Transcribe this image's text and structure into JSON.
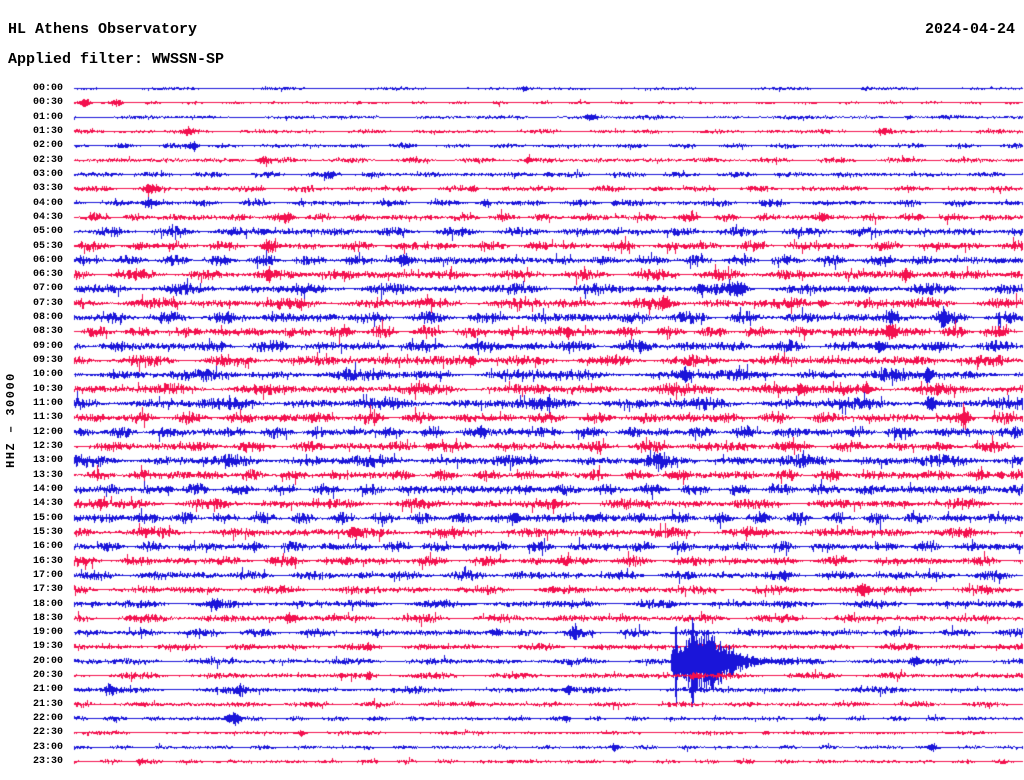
{
  "header": {
    "station_title": "HL Athens Observatory",
    "filter_label": "Applied filter: WWSSN-SP",
    "date": "2024-04-24"
  },
  "y_axis": {
    "label": "HHZ – 30000",
    "channel": "HHZ",
    "scale": "30000"
  },
  "chart_data": {
    "type": "line",
    "subtype": "helicorder-day-plot",
    "title": "HL Athens Observatory",
    "filter": "WWSSN-SP",
    "date": "2024-04-24",
    "channel": "HHZ",
    "amplitude_scale": 30000,
    "minutes_per_row": 30,
    "row_count": 48,
    "time_start": "00:00",
    "time_end": "23:30",
    "legend_position": "none",
    "grid": false,
    "colors": {
      "blue": "#1a15d9",
      "red": "#f3104e",
      "label": "#000000",
      "background": "#ffffff"
    },
    "note": "rows: t=start time, color=trace color, amp=background noise half-amplitude px, events: x=fraction along row, a=peak amplitude px, w=width fraction, shape quake = large earthquake with coda",
    "rows": [
      {
        "t": "00:00",
        "color": "blue",
        "amp": 1.4,
        "events": [
          {
            "x": 0.475,
            "a": 3,
            "w": 0.004
          },
          {
            "x": 0.835,
            "a": 2.4,
            "w": 0.004
          }
        ]
      },
      {
        "t": "00:30",
        "color": "red",
        "amp": 1.4,
        "events": [
          {
            "x": 0.012,
            "a": 4.5,
            "w": 0.006
          },
          {
            "x": 0.045,
            "a": 3.6,
            "w": 0.005
          },
          {
            "x": 0.3,
            "a": 2,
            "w": 0.003
          }
        ]
      },
      {
        "t": "01:00",
        "color": "blue",
        "amp": 1.7,
        "events": [
          {
            "x": 0.545,
            "a": 4.2,
            "w": 0.006
          },
          {
            "x": 0.88,
            "a": 2.6,
            "w": 0.004
          }
        ]
      },
      {
        "t": "01:30",
        "color": "red",
        "amp": 2.0,
        "events": [
          {
            "x": 0.12,
            "a": 3,
            "w": 0.005
          },
          {
            "x": 0.855,
            "a": 3.2,
            "w": 0.005
          }
        ]
      },
      {
        "t": "02:00",
        "color": "blue",
        "amp": 2.2,
        "events": [
          {
            "x": 0.125,
            "a": 4.5,
            "w": 0.006
          }
        ]
      },
      {
        "t": "02:30",
        "color": "red",
        "amp": 2.4,
        "events": [
          {
            "x": 0.2,
            "a": 4.5,
            "w": 0.006
          },
          {
            "x": 0.48,
            "a": 3,
            "w": 0.004
          }
        ]
      },
      {
        "t": "03:00",
        "color": "blue",
        "amp": 2.6,
        "events": [
          {
            "x": 0.27,
            "a": 3.4,
            "w": 0.005
          },
          {
            "x": 0.5,
            "a": 3,
            "w": 0.004
          }
        ]
      },
      {
        "t": "03:30",
        "color": "red",
        "amp": 2.8,
        "events": [
          {
            "x": 0.08,
            "a": 4.2,
            "w": 0.006
          },
          {
            "x": 0.42,
            "a": 2.6,
            "w": 0.004
          }
        ]
      },
      {
        "t": "04:00",
        "color": "blue",
        "amp": 3.0,
        "events": [
          {
            "x": 0.08,
            "a": 5,
            "w": 0.007
          },
          {
            "x": 0.435,
            "a": 3.4,
            "w": 0.004
          },
          {
            "x": 0.57,
            "a": 3.2,
            "w": 0.004
          }
        ]
      },
      {
        "t": "04:30",
        "color": "red",
        "amp": 3.6,
        "events": [
          {
            "x": 0.225,
            "a": 4.4,
            "w": 0.006
          },
          {
            "x": 0.79,
            "a": 3.8,
            "w": 0.005
          }
        ]
      },
      {
        "t": "05:00",
        "color": "blue",
        "amp": 4.2,
        "events": [
          {
            "x": 0.2,
            "a": 3,
            "w": 0.004
          }
        ]
      },
      {
        "t": "05:30",
        "color": "red",
        "amp": 4.4,
        "events": [
          {
            "x": 0.205,
            "a": 4.4,
            "w": 0.005
          }
        ]
      },
      {
        "t": "06:00",
        "color": "blue",
        "amp": 4.6,
        "events": [
          {
            "x": 0.348,
            "a": 4.4,
            "w": 0.005
          }
        ]
      },
      {
        "t": "06:30",
        "color": "red",
        "amp": 4.8,
        "events": [
          {
            "x": 0.205,
            "a": 5.5,
            "w": 0.004
          },
          {
            "x": 0.877,
            "a": 6.5,
            "w": 0.004
          }
        ]
      },
      {
        "t": "07:00",
        "color": "blue",
        "amp": 5.0,
        "events": [
          {
            "x": 0.7,
            "a": 7.5,
            "w": 0.007
          },
          {
            "x": 0.66,
            "a": 5,
            "w": 0.004
          }
        ]
      },
      {
        "t": "07:30",
        "color": "red",
        "amp": 5.0,
        "events": [
          {
            "x": 0.623,
            "a": 4.5,
            "w": 0.005
          },
          {
            "x": 0.79,
            "a": 4.5,
            "w": 0.005
          }
        ]
      },
      {
        "t": "08:00",
        "color": "blue",
        "amp": 5.2,
        "events": [
          {
            "x": 0.917,
            "a": 8,
            "w": 0.005
          },
          {
            "x": 0.862,
            "a": 5,
            "w": 0.004
          }
        ]
      },
      {
        "t": "08:30",
        "color": "red",
        "amp": 5.2,
        "events": [
          {
            "x": 0.861,
            "a": 9.5,
            "w": 0.006
          },
          {
            "x": 0.52,
            "a": 4.5,
            "w": 0.004
          }
        ]
      },
      {
        "t": "09:00",
        "color": "blue",
        "amp": 5.2,
        "events": [
          {
            "x": 0.85,
            "a": 5.5,
            "w": 0.005
          }
        ]
      },
      {
        "t": "09:30",
        "color": "red",
        "amp": 5.2,
        "events": [
          {
            "x": 0.42,
            "a": 3.5,
            "w": 0.004
          }
        ]
      },
      {
        "t": "10:00",
        "color": "blue",
        "amp": 5.4,
        "events": [
          {
            "x": 0.644,
            "a": 7,
            "w": 0.005
          },
          {
            "x": 0.901,
            "a": 8,
            "w": 0.005
          }
        ]
      },
      {
        "t": "10:30",
        "color": "red",
        "amp": 5.2,
        "events": [
          {
            "x": 0.766,
            "a": 5.5,
            "w": 0.005
          },
          {
            "x": 0.836,
            "a": 6,
            "w": 0.005
          }
        ]
      },
      {
        "t": "11:00",
        "color": "blue",
        "amp": 5.6,
        "events": [
          {
            "x": 0.903,
            "a": 6.5,
            "w": 0.005
          }
        ]
      },
      {
        "t": "11:30",
        "color": "red",
        "amp": 5.2,
        "events": [
          {
            "x": 0.94,
            "a": 8,
            "w": 0.005
          }
        ]
      },
      {
        "t": "12:00",
        "color": "blue",
        "amp": 5.2,
        "events": [
          {
            "x": 0.43,
            "a": 4,
            "w": 0.004
          }
        ]
      },
      {
        "t": "12:30",
        "color": "red",
        "amp": 5.0,
        "events": [
          {
            "x": 0.375,
            "a": 4.2,
            "w": 0.005
          }
        ]
      },
      {
        "t": "13:00",
        "color": "blue",
        "amp": 5.6,
        "events": [
          {
            "x": 0.617,
            "a": 6,
            "w": 0.005
          }
        ]
      },
      {
        "t": "13:30",
        "color": "red",
        "amp": 5.0,
        "events": [
          {
            "x": 0.977,
            "a": 5,
            "w": 0.004
          }
        ]
      },
      {
        "t": "14:00",
        "color": "blue",
        "amp": 5.2,
        "events": [
          {
            "x": 0.1,
            "a": 4,
            "w": 0.004
          }
        ]
      },
      {
        "t": "14:30",
        "color": "red",
        "amp": 4.8,
        "events": [
          {
            "x": 0.027,
            "a": 4.2,
            "w": 0.005
          }
        ]
      },
      {
        "t": "15:00",
        "color": "blue",
        "amp": 5.2,
        "events": [
          {
            "x": 0.465,
            "a": 5,
            "w": 0.005
          }
        ]
      },
      {
        "t": "15:30",
        "color": "red",
        "amp": 4.8,
        "events": [
          {
            "x": 0.296,
            "a": 5,
            "w": 0.005
          }
        ]
      },
      {
        "t": "16:00",
        "color": "blue",
        "amp": 4.8,
        "events": []
      },
      {
        "t": "16:30",
        "color": "red",
        "amp": 4.4,
        "events": [
          {
            "x": 0.52,
            "a": 3.5,
            "w": 0.004
          }
        ]
      },
      {
        "t": "17:00",
        "color": "blue",
        "amp": 4.2,
        "events": [
          {
            "x": 0.75,
            "a": 3.5,
            "w": 0.004
          }
        ]
      },
      {
        "t": "17:30",
        "color": "red",
        "amp": 3.8,
        "events": [
          {
            "x": 0.83,
            "a": 6,
            "w": 0.007
          }
        ]
      },
      {
        "t": "18:00",
        "color": "blue",
        "amp": 3.8,
        "events": [
          {
            "x": 0.148,
            "a": 4.2,
            "w": 0.005
          }
        ]
      },
      {
        "t": "18:30",
        "color": "red",
        "amp": 3.8,
        "events": [
          {
            "x": 0.228,
            "a": 4.6,
            "w": 0.006
          }
        ]
      },
      {
        "t": "19:00",
        "color": "blue",
        "amp": 3.6,
        "events": [
          {
            "x": 0.444,
            "a": 4.2,
            "w": 0.005
          },
          {
            "x": 0.528,
            "a": 4.2,
            "w": 0.005
          }
        ]
      },
      {
        "t": "19:30",
        "color": "red",
        "amp": 3.2,
        "events": [
          {
            "x": 0.31,
            "a": 3.2,
            "w": 0.004
          },
          {
            "x": 0.66,
            "a": 3,
            "w": 0.005
          }
        ]
      },
      {
        "t": "20:00",
        "color": "blue",
        "amp": 3.0,
        "events": [
          {
            "x": 0.629,
            "a": 30,
            "w": 0.02,
            "shape": "quake"
          },
          {
            "x": 0.6345,
            "a": 40,
            "w": 0.0012
          },
          {
            "x": 0.652,
            "a": 40,
            "w": 0.0012
          },
          {
            "x": 0.887,
            "a": 5.5,
            "w": 0.005
          }
        ]
      },
      {
        "t": "20:30",
        "color": "red",
        "amp": 3.0,
        "events": [
          {
            "x": 0.31,
            "a": 3.2,
            "w": 0.004
          },
          {
            "x": 0.657,
            "a": 4,
            "w": 0.006
          }
        ]
      },
      {
        "t": "21:00",
        "color": "blue",
        "amp": 3.0,
        "events": [
          {
            "x": 0.038,
            "a": 4.5,
            "w": 0.005
          },
          {
            "x": 0.175,
            "a": 4.5,
            "w": 0.005
          },
          {
            "x": 0.52,
            "a": 3.2,
            "w": 0.004
          }
        ]
      },
      {
        "t": "21:30",
        "color": "red",
        "amp": 2.6,
        "events": [
          {
            "x": 0.42,
            "a": 2.8,
            "w": 0.004
          }
        ]
      },
      {
        "t": "22:00",
        "color": "blue",
        "amp": 2.2,
        "events": [
          {
            "x": 0.168,
            "a": 6,
            "w": 0.008
          },
          {
            "x": 0.52,
            "a": 2.6,
            "w": 0.004
          }
        ]
      },
      {
        "t": "22:30",
        "color": "red",
        "amp": 1.8,
        "events": [
          {
            "x": 0.24,
            "a": 3.2,
            "w": 0.005
          },
          {
            "x": 0.73,
            "a": 2.8,
            "w": 0.004
          }
        ]
      },
      {
        "t": "23:00",
        "color": "blue",
        "amp": 1.8,
        "events": [
          {
            "x": 0.57,
            "a": 3.6,
            "w": 0.004
          },
          {
            "x": 0.905,
            "a": 3.2,
            "w": 0.004
          }
        ]
      },
      {
        "t": "23:30",
        "color": "red",
        "amp": 2.0,
        "events": [
          {
            "x": 0.07,
            "a": 3,
            "w": 0.004
          },
          {
            "x": 0.46,
            "a": 2.6,
            "w": 0.004
          }
        ]
      }
    ]
  }
}
